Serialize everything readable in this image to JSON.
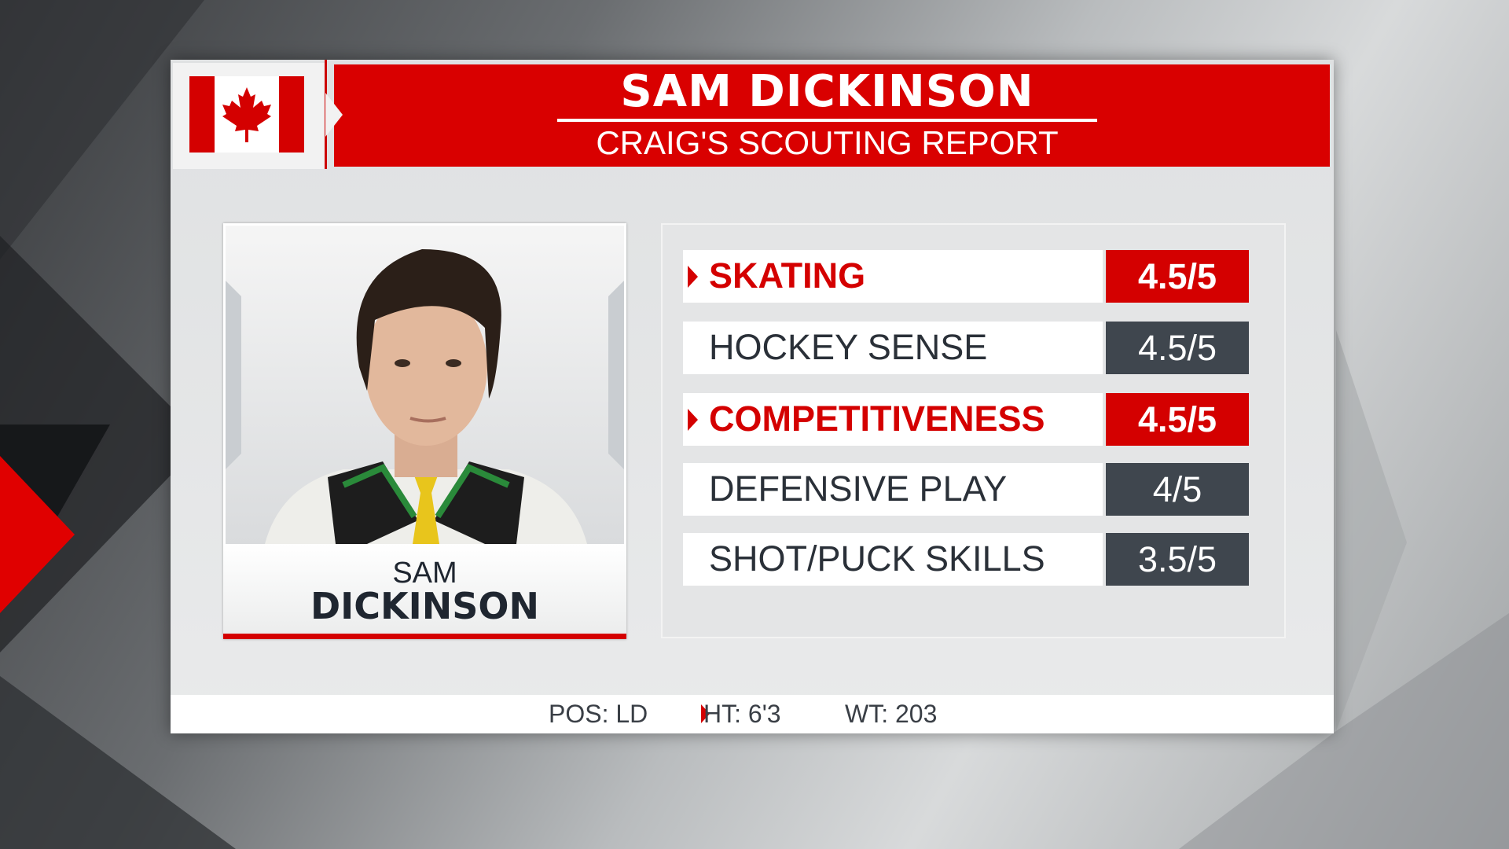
{
  "header": {
    "title": "SAM DICKINSON",
    "subtitle": "CRAIG'S SCOUTING REPORT",
    "flag_icon": "canada-flag-icon",
    "accent_color": "#d90000"
  },
  "player_card": {
    "first_name": "SAM",
    "last_name": "DICKINSON"
  },
  "ratings": [
    {
      "label": "SKATING",
      "value": "4.5/5",
      "highlighted": true
    },
    {
      "label": "HOCKEY SENSE",
      "value": "4.5/5",
      "highlighted": false
    },
    {
      "label": "COMPETITIVENESS",
      "value": "4.5/5",
      "highlighted": true
    },
    {
      "label": "DEFENSIVE PLAY",
      "value": "4/5",
      "highlighted": false
    },
    {
      "label": "SHOT/PUCK SKILLS",
      "value": "3.5/5",
      "highlighted": false
    }
  ],
  "footer": {
    "position": "POS: LD",
    "height": "HT: 6'3",
    "weight": "WT: 203"
  }
}
